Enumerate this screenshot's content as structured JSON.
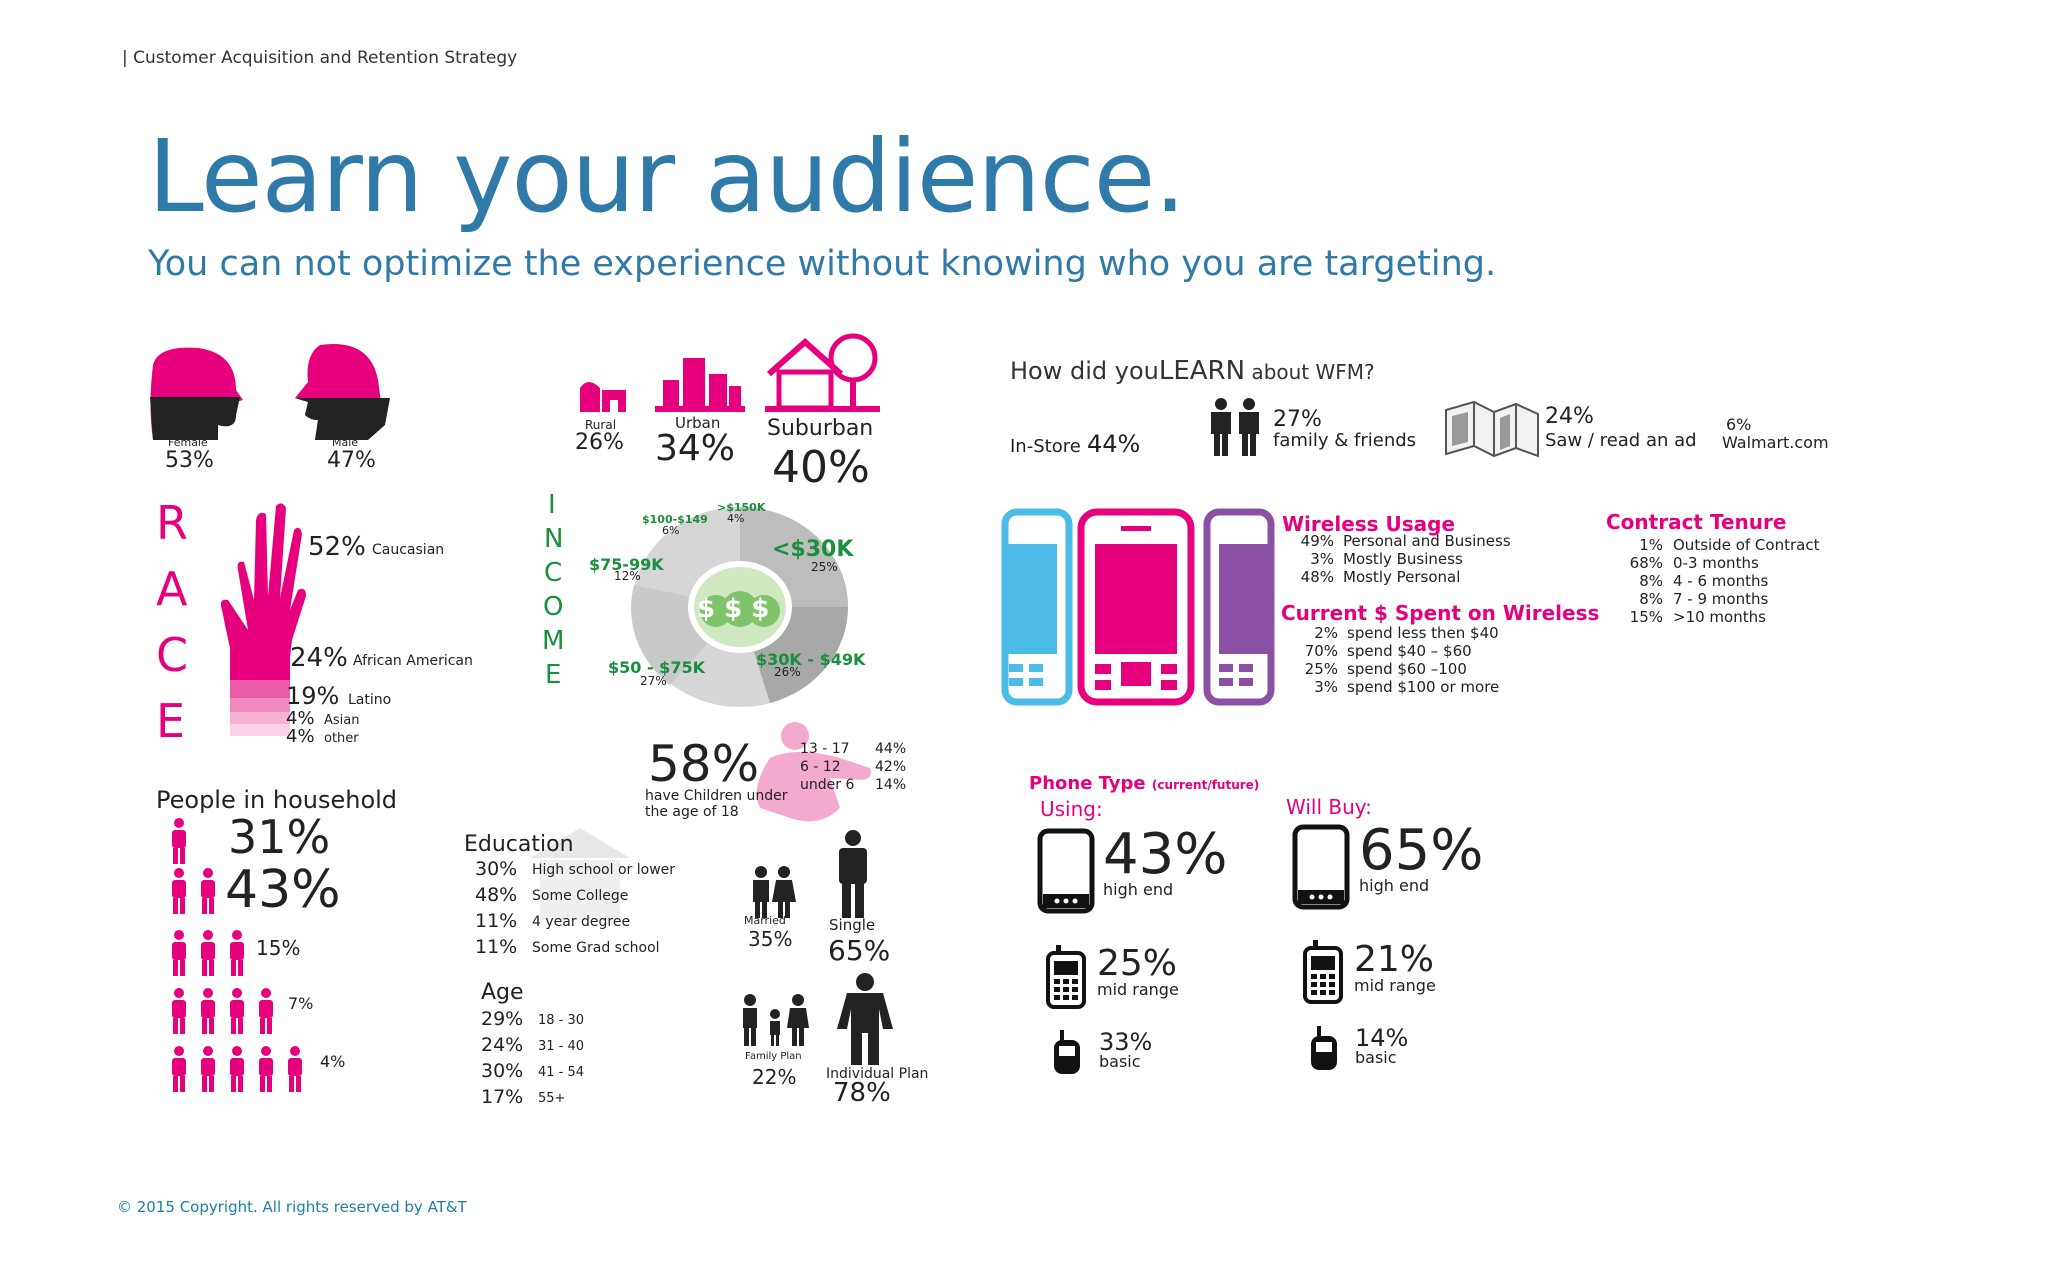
{
  "header": {
    "breadcrumb": "| Customer Acquisition and Retention Strategy",
    "title": "Learn your audience.",
    "subtitle": "You can not optimize the experience without knowing who you are targeting."
  },
  "gender": {
    "female_label": "Female",
    "female_pct": "53%",
    "male_label": "Male",
    "male_pct": "47%"
  },
  "location": {
    "rural_label": "Rural",
    "rural_pct": "26%",
    "urban_label": "Urban",
    "urban_pct": "34%",
    "suburban_label": "Suburban",
    "suburban_pct": "40%"
  },
  "race": {
    "letters": [
      "R",
      "A",
      "C",
      "E"
    ],
    "caucasian_pct": "52%",
    "caucasian_label": "Caucasian",
    "african_pct": "24%",
    "african_label": "African American",
    "latino_pct": "19%",
    "latino_label": "Latino",
    "asian_pct": "4%",
    "asian_label": "Asian",
    "other_pct": "4%",
    "other_label": "other"
  },
  "income": {
    "letters": [
      "I",
      "N",
      "C",
      "O",
      "M",
      "E"
    ],
    "b150_label": ">$150K",
    "b150_pct": "4%",
    "b100_label": "$100-$149",
    "b100_pct": "6%",
    "b75_label": "$75-99K",
    "b75_pct": "12%",
    "b30_label": "<$30K",
    "b30_pct": "25%",
    "b50_label": "$50 - $75K",
    "b50_pct": "27%",
    "b30_49_label": "$30K - $49K",
    "b30_49_pct": "26%",
    "center_label": "$ $ $"
  },
  "children": {
    "pct": "58%",
    "caption_line1": "have Children under",
    "caption_line2": "the age of 18",
    "r1_label": "13 - 17",
    "r1_pct": "44%",
    "r2_label": "6 - 12",
    "r2_pct": "42%",
    "r3_label": "under 6",
    "r3_pct": "14%"
  },
  "household": {
    "title": "People in household",
    "rows": [
      {
        "pct": "31%"
      },
      {
        "pct": "43%"
      },
      {
        "pct": "15%"
      },
      {
        "pct": "7%"
      },
      {
        "pct": "4%"
      }
    ]
  },
  "education": {
    "title": "Education",
    "rows": [
      {
        "pct": "30%",
        "label": "High school or lower"
      },
      {
        "pct": "48%",
        "label": "Some College"
      },
      {
        "pct": "11%",
        "label": "4 year degree"
      },
      {
        "pct": "11%",
        "label": "Some Grad school"
      }
    ]
  },
  "age": {
    "title": "Age",
    "rows": [
      {
        "pct": "29%",
        "label": "18 - 30"
      },
      {
        "pct": "24%",
        "label": "31 - 40"
      },
      {
        "pct": "30%",
        "label": "41 - 54"
      },
      {
        "pct": "17%",
        "label": "55+"
      }
    ]
  },
  "marital": {
    "married_label": "Married",
    "married_pct": "35%",
    "single_label": "Single",
    "single_pct": "65%"
  },
  "plan": {
    "family_label": "Family Plan",
    "family_pct": "22%",
    "individual_label": "Individual Plan",
    "individual_pct": "78%"
  },
  "learn": {
    "title_a": "How did you",
    "title_b": "LEARN",
    "title_c": " about WFM?",
    "instore_label": "In-Store",
    "instore_pct": "44%",
    "family_pct": "27%",
    "family_label": "family & friends",
    "ad_pct": "24%",
    "ad_label": "Saw / read an ad",
    "walmart_pct": "6%",
    "walmart_label": "Walmart.com"
  },
  "wireless_usage": {
    "title": "Wireless Usage",
    "rows": [
      {
        "pct": "49%",
        "label": "Personal and Business"
      },
      {
        "pct": "3%",
        "label": "Mostly Business"
      },
      {
        "pct": "48%",
        "label": "Mostly Personal"
      }
    ]
  },
  "spend": {
    "title": "Current $ Spent on Wireless",
    "rows": [
      {
        "pct": "2%",
        "label": "spend less then $40"
      },
      {
        "pct": "70%",
        "label": "spend $40 –  $60"
      },
      {
        "pct": "25%",
        "label": "spend $60 –100"
      },
      {
        "pct": "3%",
        "label": "spend $100 or more"
      }
    ]
  },
  "tenure": {
    "title": "Contract Tenure",
    "rows": [
      {
        "pct": "1%",
        "label": "Outside of Contract"
      },
      {
        "pct": "68%",
        "label": "0-3 months"
      },
      {
        "pct": "8%",
        "label": "4 - 6 months"
      },
      {
        "pct": "8%",
        "label": "7 - 9 months"
      },
      {
        "pct": "15%",
        "label": ">10 months"
      }
    ]
  },
  "phone_type": {
    "title": "Phone Type",
    "subtitle": "(current/future)",
    "using_label": "Using:",
    "willbuy_label": "Will Buy:",
    "using": [
      {
        "pct": "43%",
        "label": "high end"
      },
      {
        "pct": "25%",
        "label": "mid range"
      },
      {
        "pct": "33%",
        "label": "basic"
      }
    ],
    "willbuy": [
      {
        "pct": "65%",
        "label": "high end"
      },
      {
        "pct": "21%",
        "label": "mid range"
      },
      {
        "pct": "14%",
        "label": "basic"
      }
    ]
  },
  "footer": {
    "copyright": "© 2015 Copyright.  All rights reserved by AT&T"
  },
  "colors": {
    "title_blue": "#2f7aa8",
    "accent_pink": "#e6007e",
    "income_green": "#1a8f3c",
    "phone_blue": "#4dbbe8",
    "phone_purple": "#8b4fa3"
  }
}
